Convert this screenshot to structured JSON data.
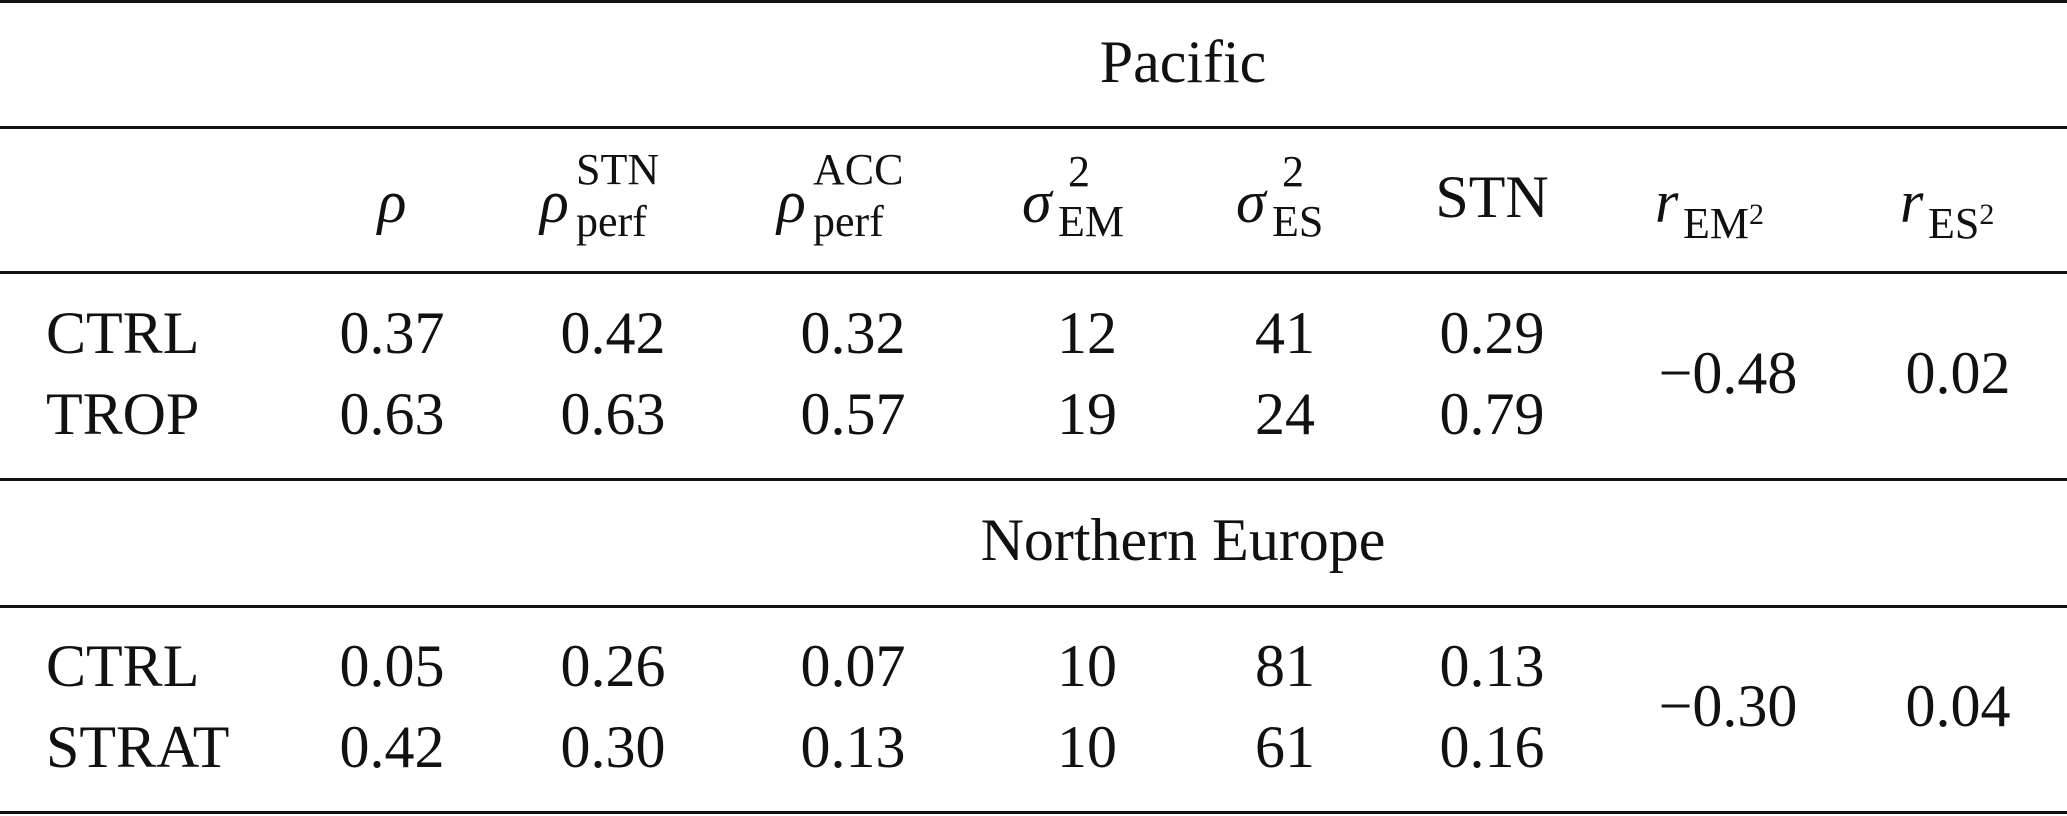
{
  "sections": [
    {
      "title": "Pacific",
      "rows": [
        {
          "label": "CTRL",
          "values": [
            "0.37",
            "0.42",
            "0.32",
            "12",
            "41",
            "0.29"
          ]
        },
        {
          "label": "TROP",
          "values": [
            "0.63",
            "0.63",
            "0.57",
            "19",
            "24",
            "0.79"
          ]
        }
      ],
      "r_em2": "−0.48",
      "r_es2": "0.02"
    },
    {
      "title": "Northern Europe",
      "rows": [
        {
          "label": "CTRL",
          "values": [
            "0.05",
            "0.26",
            "0.07",
            "10",
            "81",
            "0.13"
          ]
        },
        {
          "label": "STRAT",
          "values": [
            "0.42",
            "0.30",
            "0.13",
            "10",
            "61",
            "0.16"
          ]
        }
      ],
      "r_em2": "−0.30",
      "r_es2": "0.04"
    }
  ],
  "headers": {
    "rho": "ρ",
    "rho_perf_stn": {
      "base": "ρ",
      "sup": "STN",
      "sub": "perf"
    },
    "rho_perf_acc": {
      "base": "ρ",
      "sup": "ACC",
      "sub": "perf"
    },
    "sigma_em": {
      "base": "σ",
      "sup": "2",
      "sub": "EM"
    },
    "sigma_es": {
      "base": "σ",
      "sup": "2",
      "sub": "ES"
    },
    "stn": "STN",
    "r_em2": {
      "base": "r",
      "sub": "EM",
      "subsup": "2"
    },
    "r_es2": {
      "base": "r",
      "sub": "ES",
      "subsup": "2"
    }
  }
}
